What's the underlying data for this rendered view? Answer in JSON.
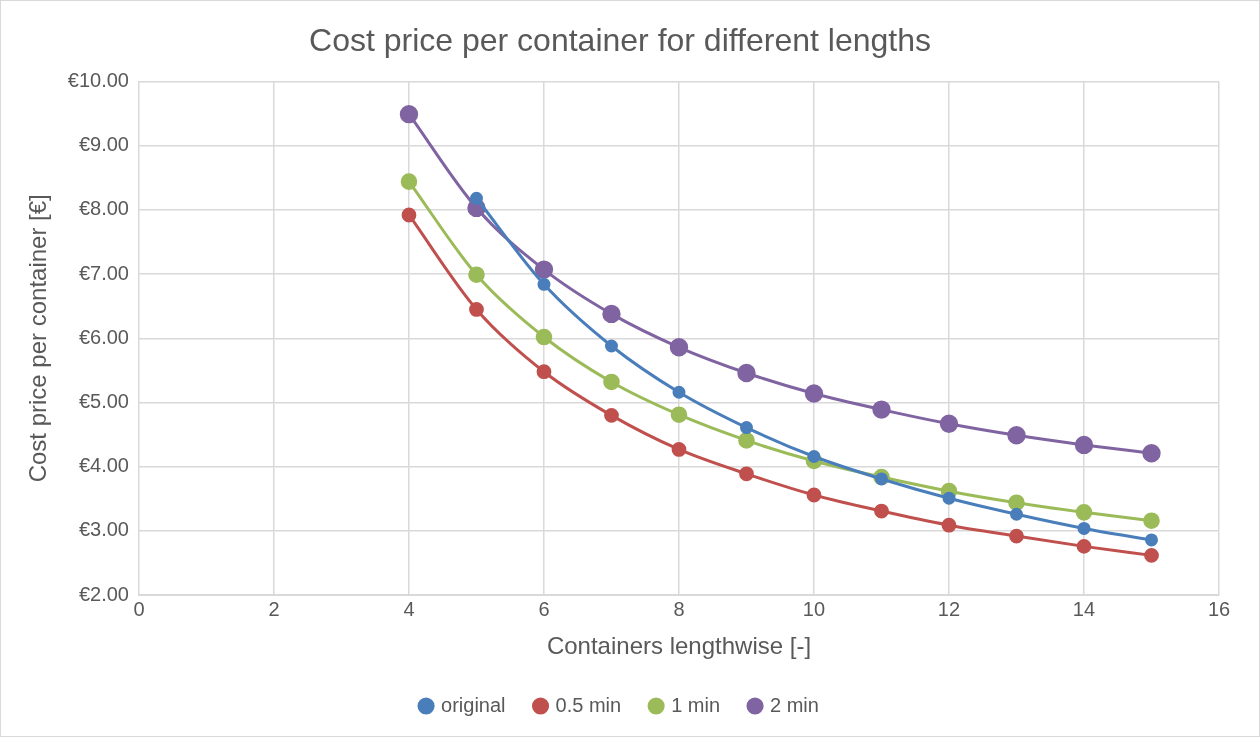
{
  "chart_data": {
    "type": "line",
    "title": "Cost price per container for different lengths",
    "xlabel": "Containers lengthwise [-]",
    "ylabel": "Cost price per container [€]",
    "x": [
      4,
      5,
      6,
      7,
      8,
      9,
      10,
      11,
      12,
      13,
      14,
      15
    ],
    "series": [
      {
        "name": "original",
        "color": "#4a7ebb",
        "values": [
          null,
          8.18,
          6.84,
          5.88,
          5.16,
          4.61,
          4.16,
          3.81,
          3.51,
          3.26,
          3.04,
          2.86
        ]
      },
      {
        "name": "0.5 min",
        "color": "#c0504d",
        "values": [
          7.92,
          6.45,
          5.48,
          4.8,
          4.27,
          3.89,
          3.56,
          3.31,
          3.09,
          2.92,
          2.76,
          2.62
        ]
      },
      {
        "name": "1 min",
        "color": "#9bbb59",
        "values": [
          8.44,
          6.99,
          6.02,
          5.32,
          4.81,
          4.41,
          4.09,
          3.84,
          3.62,
          3.44,
          3.29,
          3.16
        ]
      },
      {
        "name": "2 min",
        "color": "#8064a2",
        "values": [
          9.49,
          8.03,
          7.07,
          6.38,
          5.86,
          5.46,
          5.14,
          4.89,
          4.67,
          4.49,
          4.34,
          4.21
        ]
      }
    ],
    "xlim": [
      0,
      16
    ],
    "xticks": [
      0,
      2,
      4,
      6,
      8,
      10,
      12,
      14,
      16
    ],
    "ylim": [
      2,
      10
    ],
    "yticks": [
      {
        "value": 2,
        "label": "€2.00"
      },
      {
        "value": 3,
        "label": "€3.00"
      },
      {
        "value": 4,
        "label": "€4.00"
      },
      {
        "value": 5,
        "label": "€5.00"
      },
      {
        "value": 6,
        "label": "€6.00"
      },
      {
        "value": 7,
        "label": "€7.00"
      },
      {
        "value": 8,
        "label": "€8.00"
      },
      {
        "value": 9,
        "label": "€9.00"
      },
      {
        "value": 10,
        "label": "€10.00"
      }
    ],
    "grid": true,
    "legend": "bottom",
    "marker": "circle",
    "line_style": "solid"
  }
}
